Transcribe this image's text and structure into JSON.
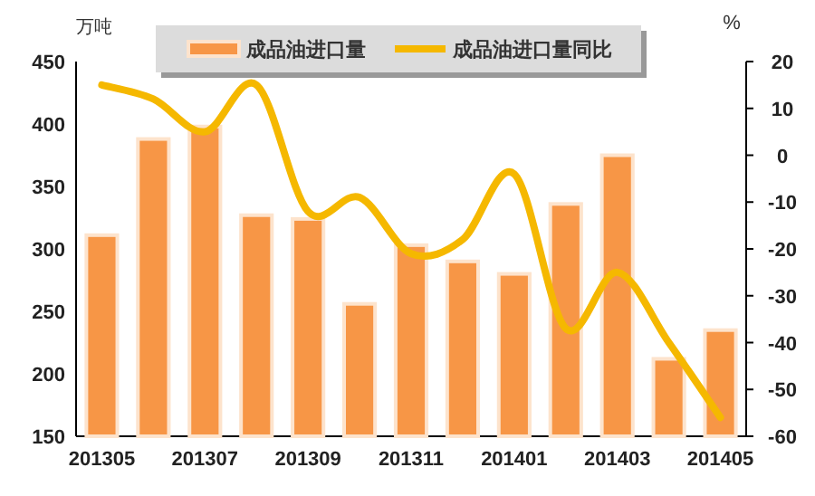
{
  "chart_data": {
    "type": "bar",
    "categories": [
      "201305",
      null,
      "201307",
      null,
      "201309",
      null,
      "201311",
      null,
      "201401",
      null,
      "201403",
      null,
      "201405"
    ],
    "series": [
      {
        "name": "成品油进口量",
        "color": "#f79646",
        "values": [
          311,
          388,
          398,
          327,
          324,
          256,
          303,
          290,
          280,
          336,
          375,
          212,
          235
        ]
      },
      {
        "name": "成品油进口量同比",
        "type": "line",
        "axis": "y2",
        "color": "#f5b800",
        "values": [
          15,
          12,
          5,
          15,
          -12,
          -9,
          -21,
          -18,
          -4,
          -37,
          -25,
          -40,
          -56
        ]
      }
    ],
    "ylabel": "万吨",
    "y2label": "%",
    "ylim": [
      150,
      450
    ],
    "yticks": [
      150,
      200,
      250,
      300,
      350,
      400,
      450
    ],
    "y2lim": [
      -60,
      20
    ],
    "y2ticks": [
      -60,
      -50,
      -40,
      -30,
      -20,
      -10,
      0,
      10,
      20
    ],
    "legend": "top",
    "grid": false
  }
}
